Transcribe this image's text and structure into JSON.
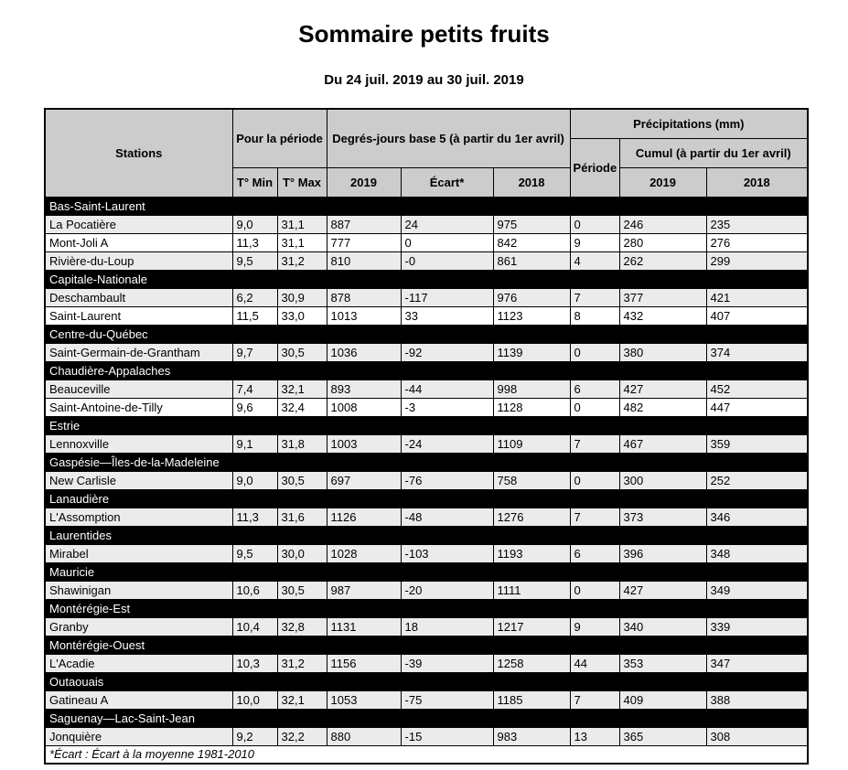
{
  "title": "Sommaire petits fruits",
  "subtitle": "Du 24 juil. 2019 au 30 juil. 2019",
  "colors": {
    "header_bg": "#cccccc",
    "region_row_bg": "#000000",
    "region_row_text": "#ffffff",
    "alt_row_bg": "#ebebeb",
    "border": "#000000"
  },
  "table": {
    "header": {
      "stations": "Stations",
      "pour_la_periode": "Pour la période",
      "degres_jours": "Degrés-jours base 5 (à partir du 1er avril)",
      "precipitations": "Précipitations (mm)",
      "periode": "Période",
      "cumul": "Cumul (à partir du 1er avril)",
      "t_min": "T° Min",
      "t_max": "T° Max",
      "dj_2019": "2019",
      "ecart": "Écart*",
      "dj_2018": "2018",
      "precip_2019": "2019",
      "precip_2018": "2018"
    },
    "regions": [
      {
        "name": "Bas-Saint-Laurent",
        "stations": [
          {
            "name": "La Pocatière",
            "t_min": "9,0",
            "t_max": "31,1",
            "dj_2019": "887",
            "ecart": "24",
            "dj_2018": "975",
            "periode": "0",
            "p_2019": "246",
            "p_2018": "235"
          },
          {
            "name": "Mont-Joli A",
            "t_min": "11,3",
            "t_max": "31,1",
            "dj_2019": "777",
            "ecart": "0",
            "dj_2018": "842",
            "periode": "9",
            "p_2019": "280",
            "p_2018": "276"
          },
          {
            "name": "Rivière-du-Loup",
            "t_min": "9,5",
            "t_max": "31,2",
            "dj_2019": "810",
            "ecart": "-0",
            "dj_2018": "861",
            "periode": "4",
            "p_2019": "262",
            "p_2018": "299"
          }
        ]
      },
      {
        "name": "Capitale-Nationale",
        "stations": [
          {
            "name": "Deschambault",
            "t_min": "6,2",
            "t_max": "30,9",
            "dj_2019": "878",
            "ecart": "-117",
            "dj_2018": "976",
            "periode": "7",
            "p_2019": "377",
            "p_2018": "421"
          },
          {
            "name": "Saint-Laurent",
            "t_min": "11,5",
            "t_max": "33,0",
            "dj_2019": "1013",
            "ecart": "33",
            "dj_2018": "1123",
            "periode": "8",
            "p_2019": "432",
            "p_2018": "407"
          }
        ]
      },
      {
        "name": "Centre-du-Québec",
        "stations": [
          {
            "name": "Saint-Germain-de-Grantham",
            "t_min": "9,7",
            "t_max": "30,5",
            "dj_2019": "1036",
            "ecart": "-92",
            "dj_2018": "1139",
            "periode": "0",
            "p_2019": "380",
            "p_2018": "374"
          }
        ]
      },
      {
        "name": "Chaudière-Appalaches",
        "stations": [
          {
            "name": "Beauceville",
            "t_min": "7,4",
            "t_max": "32,1",
            "dj_2019": "893",
            "ecart": "-44",
            "dj_2018": "998",
            "periode": "6",
            "p_2019": "427",
            "p_2018": "452"
          },
          {
            "name": "Saint-Antoine-de-Tilly",
            "t_min": "9,6",
            "t_max": "32,4",
            "dj_2019": "1008",
            "ecart": "-3",
            "dj_2018": "1128",
            "periode": "0",
            "p_2019": "482",
            "p_2018": "447"
          }
        ]
      },
      {
        "name": "Estrie",
        "stations": [
          {
            "name": "Lennoxville",
            "t_min": "9,1",
            "t_max": "31,8",
            "dj_2019": "1003",
            "ecart": "-24",
            "dj_2018": "1109",
            "periode": "7",
            "p_2019": "467",
            "p_2018": "359"
          }
        ]
      },
      {
        "name": "Gaspésie—Îles-de-la-Madeleine",
        "stations": [
          {
            "name": "New Carlisle",
            "t_min": "9,0",
            "t_max": "30,5",
            "dj_2019": "697",
            "ecart": "-76",
            "dj_2018": "758",
            "periode": "0",
            "p_2019": "300",
            "p_2018": "252"
          }
        ]
      },
      {
        "name": "Lanaudière",
        "stations": [
          {
            "name": "L'Assomption",
            "t_min": "11,3",
            "t_max": "31,6",
            "dj_2019": "1126",
            "ecart": "-48",
            "dj_2018": "1276",
            "periode": "7",
            "p_2019": "373",
            "p_2018": "346"
          }
        ]
      },
      {
        "name": "Laurentides",
        "stations": [
          {
            "name": "Mirabel",
            "t_min": "9,5",
            "t_max": "30,0",
            "dj_2019": "1028",
            "ecart": "-103",
            "dj_2018": "1193",
            "periode": "6",
            "p_2019": "396",
            "p_2018": "348"
          }
        ]
      },
      {
        "name": "Mauricie",
        "stations": [
          {
            "name": "Shawinigan",
            "t_min": "10,6",
            "t_max": "30,5",
            "dj_2019": "987",
            "ecart": "-20",
            "dj_2018": "1111",
            "periode": "0",
            "p_2019": "427",
            "p_2018": "349"
          }
        ]
      },
      {
        "name": "Montérégie-Est",
        "stations": [
          {
            "name": "Granby",
            "t_min": "10,4",
            "t_max": "32,8",
            "dj_2019": "1131",
            "ecart": "18",
            "dj_2018": "1217",
            "periode": "9",
            "p_2019": "340",
            "p_2018": "339"
          }
        ]
      },
      {
        "name": "Montérégie-Ouest",
        "stations": [
          {
            "name": "L'Acadie",
            "t_min": "10,3",
            "t_max": "31,2",
            "dj_2019": "1156",
            "ecart": "-39",
            "dj_2018": "1258",
            "periode": "44",
            "p_2019": "353",
            "p_2018": "347"
          }
        ]
      },
      {
        "name": "Outaouais",
        "stations": [
          {
            "name": "Gatineau A",
            "t_min": "10,0",
            "t_max": "32,1",
            "dj_2019": "1053",
            "ecart": "-75",
            "dj_2018": "1185",
            "periode": "7",
            "p_2019": "409",
            "p_2018": "388"
          }
        ]
      },
      {
        "name": "Saguenay—Lac-Saint-Jean",
        "stations": [
          {
            "name": "Jonquière",
            "t_min": "9,2",
            "t_max": "32,2",
            "dj_2019": "880",
            "ecart": "-15",
            "dj_2018": "983",
            "periode": "13",
            "p_2019": "365",
            "p_2018": "308"
          }
        ]
      }
    ],
    "footnote": "*Écart : Écart à la moyenne 1981-2010"
  }
}
